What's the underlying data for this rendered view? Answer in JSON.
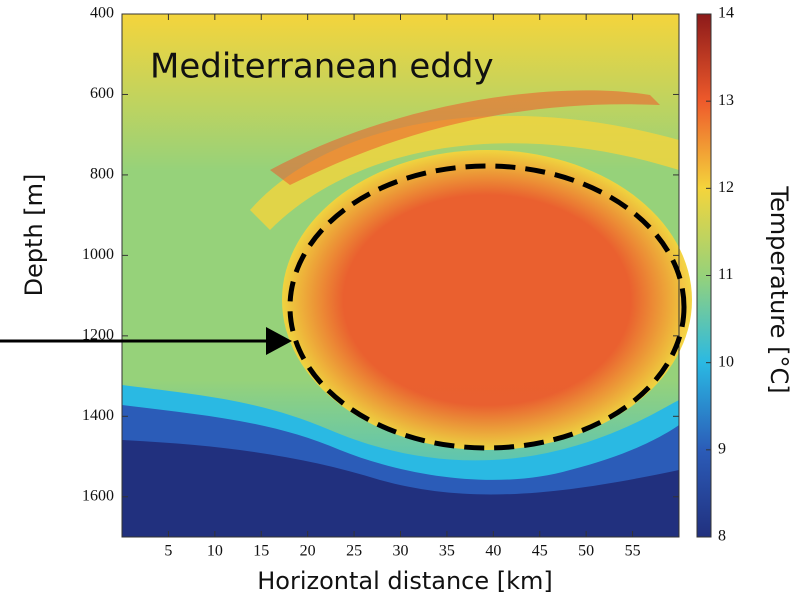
{
  "chart_data": {
    "type": "heatmap",
    "annotation": "Mediterranean eddy",
    "xlabel": "Horizontal distance [km]",
    "ylabel": "Depth [m]",
    "colorbar_label": "Temperature [°C]",
    "xlim": [
      0,
      60
    ],
    "xticks": [
      5,
      10,
      15,
      20,
      25,
      30,
      35,
      40,
      45,
      50,
      55
    ],
    "ylim": [
      1700,
      400
    ],
    "yticks": [
      400,
      600,
      800,
      1000,
      1200,
      1400,
      1600
    ],
    "clim": [
      8,
      14
    ],
    "cticks": [
      8,
      9,
      10,
      11,
      12,
      13,
      14
    ],
    "colormap": [
      "#21307e",
      "#2b5cb8",
      "#2ab9e3",
      "#96d27a",
      "#f4d43c",
      "#ee5a2b",
      "#8c1a1a"
    ]
  }
}
